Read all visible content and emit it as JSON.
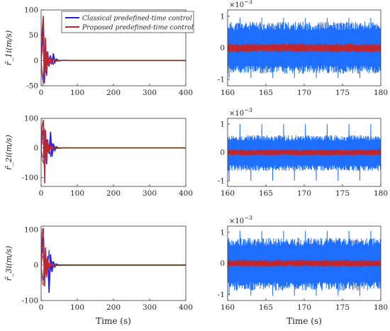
{
  "figure": {
    "xlabel": "Time (s)"
  },
  "legend": {
    "placement": "top-left panel, upper-right",
    "entries": [
      {
        "label": "Classical predefined-time control",
        "color": "#1f1fd6"
      },
      {
        "label": "Proposed predefined-time control",
        "color": "#c0272d"
      }
    ]
  },
  "colors": {
    "classical": "#1f1fd6",
    "classical_zoom": "#1e6fff",
    "proposed": "#c0272d",
    "accent_pink": "#d94aa0",
    "accent_brown": "#6b3b12"
  },
  "chart_data": [
    {
      "id": "left-1",
      "type": "line",
      "ylabel": "r̃_1i(m/s)",
      "xlim": [
        0,
        400
      ],
      "ylim": [
        -50,
        100
      ],
      "xticks": [
        "0",
        "100",
        "200",
        "300",
        "400"
      ],
      "yticks": [
        "100",
        "50",
        "0",
        "-50"
      ],
      "series": [
        {
          "name": "Classical predefined-time control",
          "x": [
            0,
            3,
            6,
            9,
            12,
            15,
            18,
            22,
            26,
            30,
            34,
            38,
            42,
            50,
            60,
            80,
            120,
            200,
            300,
            400
          ],
          "y": [
            0,
            40,
            70,
            -45,
            20,
            -30,
            18,
            -12,
            10,
            -8,
            14,
            -4,
            3,
            -1,
            0.5,
            0,
            0,
            0,
            0,
            0
          ]
        },
        {
          "name": "Proposed predefined-time control",
          "x": [
            0,
            3,
            6,
            8,
            10,
            12,
            15,
            18,
            22,
            26,
            30,
            35,
            40,
            50,
            80,
            120,
            200,
            300,
            400
          ],
          "y": [
            0,
            60,
            88,
            30,
            -35,
            45,
            -20,
            15,
            -10,
            6,
            -4,
            2,
            -1,
            0,
            0,
            0,
            0,
            0,
            0
          ]
        }
      ]
    },
    {
      "id": "right-1",
      "type": "line",
      "ylabel": "",
      "y_scale_label": "×10^-3",
      "xlim": [
        160,
        180
      ],
      "ylim": [
        -1.2,
        1.2
      ],
      "xticks": [
        "160",
        "165",
        "170",
        "175",
        "180"
      ],
      "yticks": [
        "1",
        "0",
        "-1"
      ],
      "series": [
        {
          "name": "Classical predefined-time control",
          "envelope_upper": 0.75,
          "envelope_lower": -0.75,
          "peak": 1.0
        },
        {
          "name": "Proposed predefined-time control",
          "envelope_upper": 0.12,
          "envelope_lower": -0.12
        }
      ]
    },
    {
      "id": "left-2",
      "type": "line",
      "ylabel": "r̃_2i(m/s)",
      "xlim": [
        0,
        400
      ],
      "ylim": [
        -130,
        100
      ],
      "xticks": [
        "0",
        "100",
        "200",
        "300",
        "400"
      ],
      "yticks": [
        "100",
        "0",
        "-100"
      ],
      "series": [
        {
          "name": "Classical predefined-time control",
          "x": [
            0,
            3,
            6,
            9,
            12,
            15,
            18,
            22,
            26,
            30,
            34,
            38,
            42,
            50,
            60,
            80,
            120,
            200,
            300,
            400
          ],
          "y": [
            0,
            45,
            60,
            -65,
            30,
            -55,
            28,
            -20,
            55,
            -30,
            15,
            -8,
            4,
            -1,
            0.5,
            0,
            0,
            0,
            0,
            0
          ]
        },
        {
          "name": "Proposed predefined-time control",
          "x": [
            0,
            3,
            6,
            8,
            10,
            12,
            15,
            18,
            22,
            26,
            30,
            35,
            40,
            50,
            80,
            120,
            200,
            300,
            400
          ],
          "y": [
            0,
            75,
            95,
            40,
            -120,
            60,
            -40,
            25,
            -15,
            8,
            -4,
            2,
            -1,
            0,
            0,
            0,
            0,
            0,
            0
          ]
        }
      ]
    },
    {
      "id": "right-2",
      "type": "line",
      "ylabel": "",
      "y_scale_label": "×10^-3",
      "xlim": [
        160,
        180
      ],
      "ylim": [
        -1.2,
        1.2
      ],
      "xticks": [
        "160",
        "165",
        "170",
        "175",
        "180"
      ],
      "yticks": [
        "1",
        "0",
        "-1"
      ],
      "series": [
        {
          "name": "Classical predefined-time control",
          "envelope_upper": 0.55,
          "envelope_lower": -0.6,
          "peak": 1.05
        },
        {
          "name": "Proposed predefined-time control",
          "envelope_upper": 0.1,
          "envelope_lower": -0.1
        }
      ]
    },
    {
      "id": "left-3",
      "type": "line",
      "ylabel": "r̃_3i(m/s)",
      "xlim": [
        0,
        400
      ],
      "ylim": [
        -100,
        110
      ],
      "xticks": [
        "0",
        "100",
        "200",
        "300",
        "400"
      ],
      "yticks": [
        "100",
        "0",
        "-100"
      ],
      "series": [
        {
          "name": "Classical predefined-time control",
          "x": [
            0,
            3,
            6,
            9,
            12,
            15,
            18,
            22,
            26,
            30,
            34,
            38,
            42,
            50,
            60,
            80,
            120,
            200,
            300,
            400
          ],
          "y": [
            0,
            50,
            80,
            -40,
            35,
            -30,
            25,
            -78,
            30,
            -20,
            10,
            -5,
            3,
            -1,
            0.5,
            0,
            0,
            0,
            0,
            0
          ]
        },
        {
          "name": "Proposed predefined-time control",
          "x": [
            0,
            3,
            6,
            8,
            10,
            12,
            15,
            18,
            22,
            26,
            30,
            35,
            40,
            50,
            80,
            120,
            200,
            300,
            400
          ],
          "y": [
            0,
            90,
            105,
            30,
            -60,
            50,
            -35,
            20,
            -10,
            6,
            -3,
            2,
            -1,
            0,
            0,
            0,
            0,
            0,
            0
          ]
        }
      ]
    },
    {
      "id": "right-3",
      "type": "line",
      "ylabel": "",
      "y_scale_label": "×10^-3",
      "xlim": [
        160,
        180
      ],
      "ylim": [
        -1.2,
        1.2
      ],
      "xticks": [
        "160",
        "165",
        "170",
        "175",
        "180"
      ],
      "yticks": [
        "1",
        "0",
        "-1"
      ],
      "series": [
        {
          "name": "Classical predefined-time control",
          "envelope_upper": 0.75,
          "envelope_lower": -0.8,
          "peak": 1.1
        },
        {
          "name": "Proposed predefined-time control",
          "envelope_upper": 0.1,
          "envelope_lower": -0.1
        }
      ]
    }
  ]
}
